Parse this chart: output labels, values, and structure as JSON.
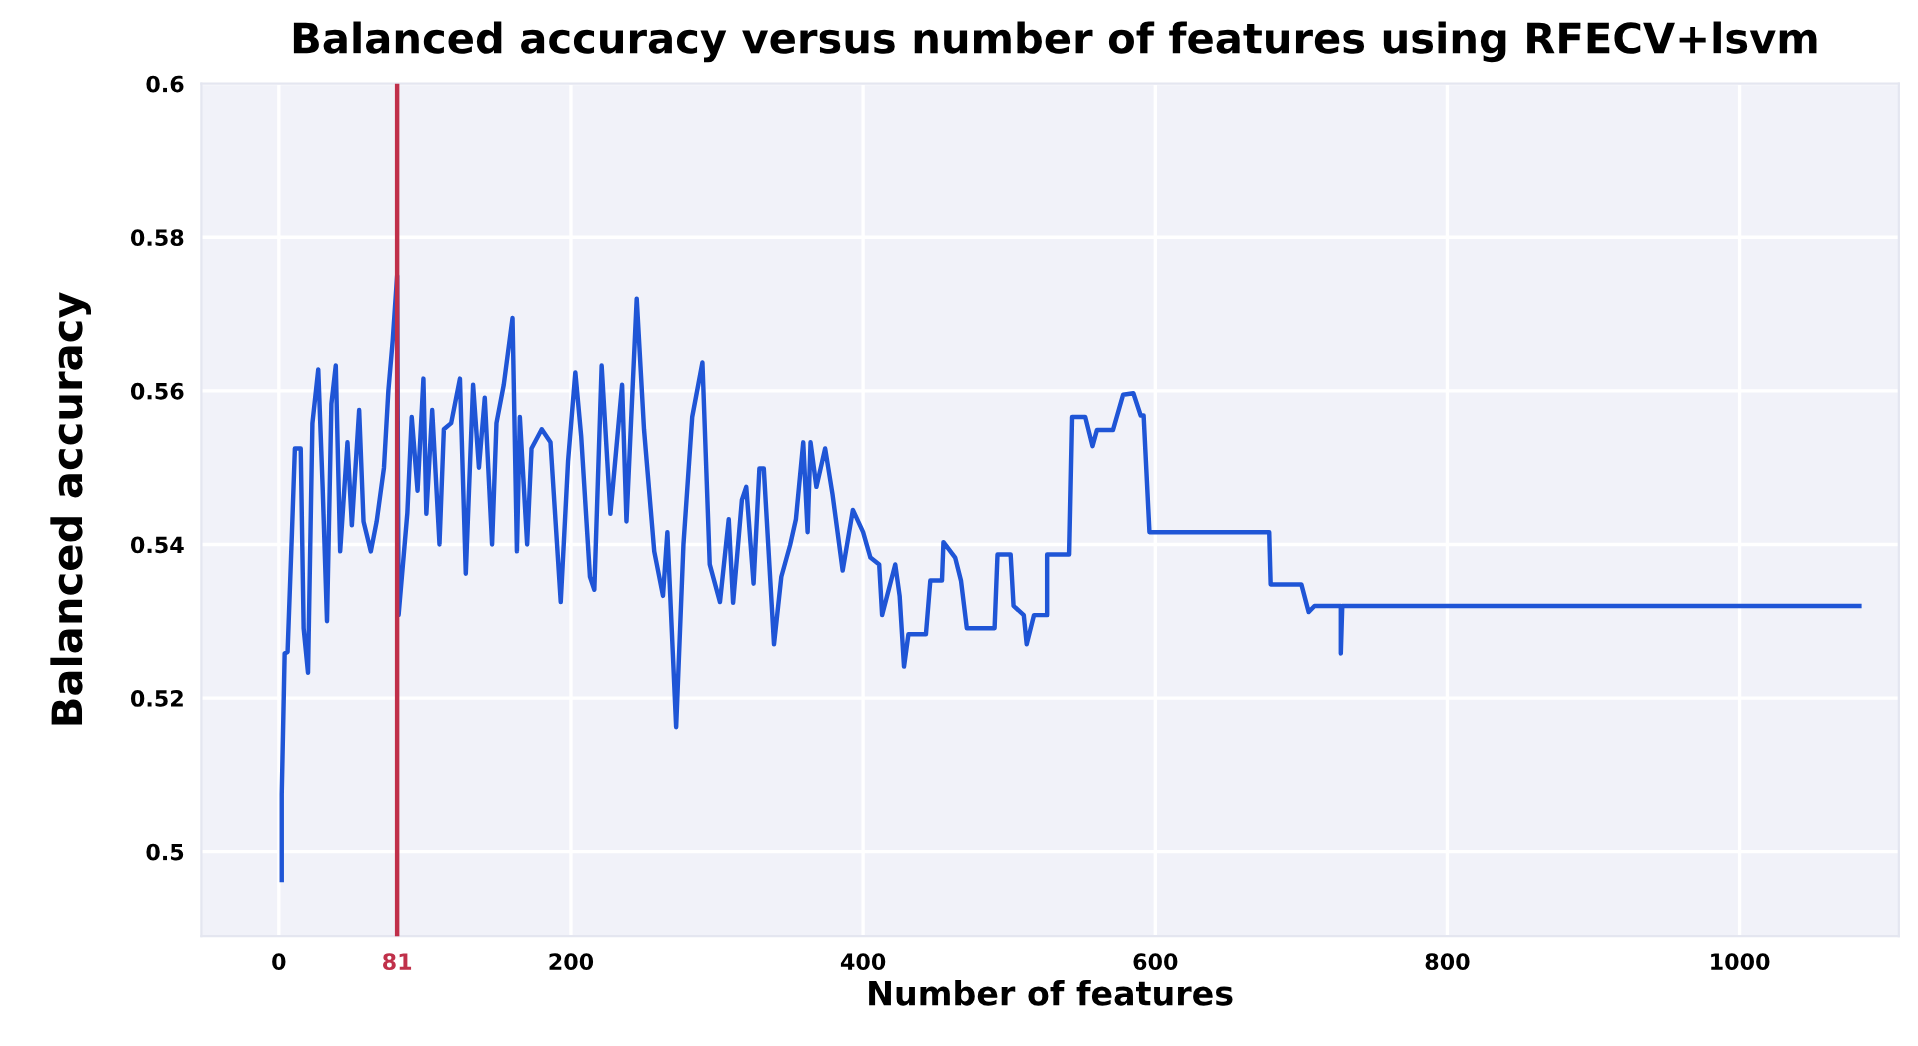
{
  "chart_data": {
    "type": "line",
    "title": "Balanced accuracy versus number of features using RFECV+lsvm",
    "xlabel": "Number of features",
    "ylabel": "Balanced accuracy",
    "series": [
      {
        "color": "#1f55d6",
        "x": [
          2,
          2,
          4,
          6,
          9,
          11,
          15,
          17,
          20,
          23,
          27,
          30,
          33,
          36,
          39,
          42,
          47,
          50,
          55,
          58,
          63,
          67,
          72,
          75,
          78,
          81,
          82,
          88,
          91,
          95,
          99,
          101,
          105,
          110,
          113,
          118,
          124,
          128,
          133,
          137,
          141,
          146,
          149,
          154,
          160,
          163,
          165,
          170,
          173,
          180,
          186,
          193,
          198,
          203,
          207,
          213,
          216,
          221,
          227,
          235,
          238,
          245,
          250,
          257,
          263,
          266,
          272,
          277,
          283,
          290,
          295,
          302,
          308,
          311,
          317,
          320,
          325,
          329,
          332,
          339,
          344,
          350,
          354,
          359,
          362,
          364,
          368,
          374,
          379,
          386,
          393,
          400,
          405,
          411,
          413,
          422,
          425,
          428,
          431,
          443,
          446,
          454,
          455,
          463,
          467,
          471,
          476,
          490,
          492,
          501,
          503,
          510,
          512,
          517,
          526,
          526,
          541,
          543,
          552,
          557,
          560,
          571,
          578,
          585,
          590,
          592,
          596,
          678,
          679,
          700,
          705,
          709,
          727,
          727,
          728,
          1082
        ],
        "values": [
          0.4963,
          0.5075,
          0.5258,
          0.526,
          0.5416,
          0.5525,
          0.5525,
          0.5291,
          0.5233,
          0.5558,
          0.5628,
          0.5475,
          0.53,
          0.5583,
          0.5633,
          0.5391,
          0.5533,
          0.5425,
          0.5575,
          0.543,
          0.5391,
          0.543,
          0.55,
          0.56,
          0.5666,
          0.575,
          0.5308,
          0.5441,
          0.5566,
          0.547,
          0.5616,
          0.544,
          0.5575,
          0.54,
          0.555,
          0.5558,
          0.5616,
          0.5362,
          0.5608,
          0.55,
          0.5591,
          0.54,
          0.5558,
          0.5608,
          0.5695,
          0.5391,
          0.5566,
          0.54,
          0.5525,
          0.555,
          0.5533,
          0.5325,
          0.5508,
          0.5624,
          0.5541,
          0.5358,
          0.5341,
          0.5633,
          0.544,
          0.5608,
          0.543,
          0.572,
          0.555,
          0.5391,
          0.5333,
          0.5416,
          0.5162,
          0.54,
          0.5566,
          0.5637,
          0.5374,
          0.5325,
          0.5433,
          0.5324,
          0.5458,
          0.5475,
          0.5349,
          0.5499,
          0.5499,
          0.527,
          0.5358,
          0.5399,
          0.5433,
          0.5533,
          0.5416,
          0.5533,
          0.5475,
          0.5525,
          0.5466,
          0.5366,
          0.5445,
          0.5416,
          0.5383,
          0.5374,
          0.5308,
          0.5374,
          0.5333,
          0.5241,
          0.5283,
          0.5283,
          0.5353,
          0.5353,
          0.5403,
          0.5383,
          0.5353,
          0.5291,
          0.5291,
          0.5291,
          0.5387,
          0.5387,
          0.532,
          0.5308,
          0.527,
          0.5308,
          0.5308,
          0.5387,
          0.5387,
          0.5566,
          0.5566,
          0.5528,
          0.5549,
          0.5549,
          0.5595,
          0.5597,
          0.5568,
          0.5568,
          0.5416,
          0.5416,
          0.5348,
          0.5348,
          0.5312,
          0.532,
          0.532,
          0.5258,
          0.532,
          0.532
        ]
      }
    ],
    "xlim": [
      -53,
      1109
    ],
    "ylim": [
      0.489,
      0.6
    ],
    "xticks": [
      0,
      {
        "value": 81,
        "label": "81"
      },
      200,
      400,
      600,
      800,
      1000
    ],
    "yticks": [
      0.5,
      0.52,
      0.54,
      0.56,
      0.58,
      0.6
    ],
    "ref_lines": [
      {
        "axis": "x",
        "value": 81,
        "color": "#c0304a"
      }
    ],
    "grid": true
  }
}
